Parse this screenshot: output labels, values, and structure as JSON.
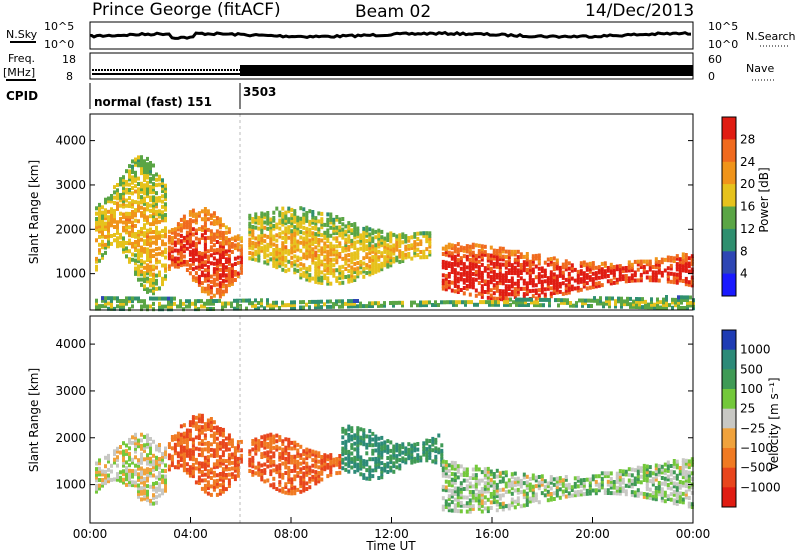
{
  "header": {
    "station": "Prince George (fitACF)",
    "beam": "Beam 02",
    "date": "14/Dec/2013"
  },
  "top_panels": {
    "noise": {
      "left_label": "N.Sky",
      "right_label": "N.Search",
      "left_ticks": [
        "10^5",
        "10^0"
      ],
      "right_ticks": [
        "10^5",
        "10^0"
      ]
    },
    "freq": {
      "left_label_1": "Freq.",
      "left_label_2": "[MHz]",
      "right_label": "Nave",
      "left_ticks": [
        "18",
        "8"
      ],
      "right_ticks": [
        "60",
        "0"
      ]
    },
    "cpid": {
      "label": "CPID",
      "segments": [
        {
          "name": "normal (fast) 151",
          "start_hour": 0,
          "end_hour": 6
        },
        {
          "name": "3503",
          "start_hour": 6,
          "end_hour": 24
        }
      ]
    }
  },
  "chart_data": [
    {
      "type": "heatmap",
      "panel": "power",
      "ylabel": "Slant Range [km]",
      "yticks": [
        1000,
        2000,
        3000,
        4000
      ],
      "ylim": [
        180,
        4600
      ],
      "xlim_hours": [
        0,
        24
      ],
      "colorbar_label": "Power [dB]",
      "colorbar_ticks": [
        "4",
        "8",
        "12",
        "16",
        "20",
        "24",
        "28"
      ],
      "colorbar_range": [
        0,
        30
      ],
      "colors": [
        "#1a1aff",
        "#2e46b4",
        "#2f8f6f",
        "#5aa545",
        "#e6c21c",
        "#f0941a",
        "#f06a1e",
        "#e01c12"
      ],
      "echo_regions": [
        {
          "t0": 0.2,
          "t1": 3.0,
          "r0": 800,
          "r1": 3500,
          "level": 14
        },
        {
          "t0": 3.1,
          "t1": 6.0,
          "r0": 600,
          "r1": 2400,
          "level": 22
        },
        {
          "t0": 6.3,
          "t1": 13.5,
          "r0": 900,
          "r1": 2400,
          "level": 14
        },
        {
          "t0": 14.0,
          "t1": 24.0,
          "r0": 500,
          "r1": 1600,
          "level": 24
        },
        {
          "t0": 0.2,
          "t1": 24.0,
          "r0": 200,
          "r1": 450,
          "level": 10
        }
      ]
    },
    {
      "type": "heatmap",
      "panel": "velocity",
      "ylabel": "Slant Range [km]",
      "xlabel": "Time UT",
      "yticks": [
        1000,
        2000,
        3000,
        4000
      ],
      "ylim": [
        180,
        4600
      ],
      "xticks": [
        "00:00",
        "04:00",
        "08:00",
        "12:00",
        "16:00",
        "20:00",
        "00:00"
      ],
      "xlim_hours": [
        0,
        24
      ],
      "colorbar_label": "Velocity [m s⁻¹]",
      "colorbar_ticks": [
        "1000",
        "500",
        "100",
        "25",
        "−25",
        "−100",
        "−500",
        "−1000"
      ],
      "colors": [
        "#1f3cb4",
        "#2c8a78",
        "#3f9a55",
        "#73c83a",
        "#c8c8c4",
        "#f0a23c",
        "#f07a22",
        "#e8451c",
        "#e01c12"
      ],
      "echo_regions": [
        {
          "t0": 0.2,
          "t1": 3.0,
          "r0": 700,
          "r1": 2000,
          "level": 0
        },
        {
          "t0": 3.1,
          "t1": 6.0,
          "r0": 900,
          "r1": 2400,
          "level": -300
        },
        {
          "t0": 6.3,
          "t1": 10.0,
          "r0": 900,
          "r1": 2000,
          "level": -300
        },
        {
          "t0": 10.0,
          "t1": 14.0,
          "r0": 1200,
          "r1": 2200,
          "level": 300
        },
        {
          "t0": 14.0,
          "t1": 24.0,
          "r0": 500,
          "r1": 1500,
          "level": 50
        }
      ]
    }
  ]
}
